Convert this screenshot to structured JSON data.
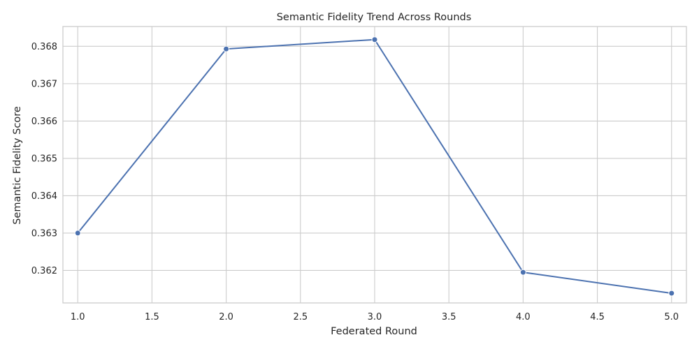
{
  "chart_data": {
    "type": "line",
    "title": "Semantic Fidelity Trend Across Rounds",
    "xlabel": "Federated Round",
    "ylabel": "Semantic Fidelity Score",
    "x": [
      1.0,
      2.0,
      3.0,
      4.0,
      5.0
    ],
    "series": [
      {
        "values": [
          0.363,
          0.36793,
          0.36818,
          0.36195,
          0.36139
        ]
      }
    ],
    "xlim": [
      0.9,
      5.1
    ],
    "ylim": [
      0.36113,
      0.36853
    ],
    "xticks": [
      "1.0",
      "1.5",
      "2.0",
      "2.5",
      "3.0",
      "3.5",
      "4.0",
      "4.5",
      "5.0"
    ],
    "yticks": [
      "0.362",
      "0.363",
      "0.364",
      "0.365",
      "0.366",
      "0.367",
      "0.368"
    ],
    "grid": true,
    "line_color": "#4c72b0",
    "marker": "circle"
  }
}
